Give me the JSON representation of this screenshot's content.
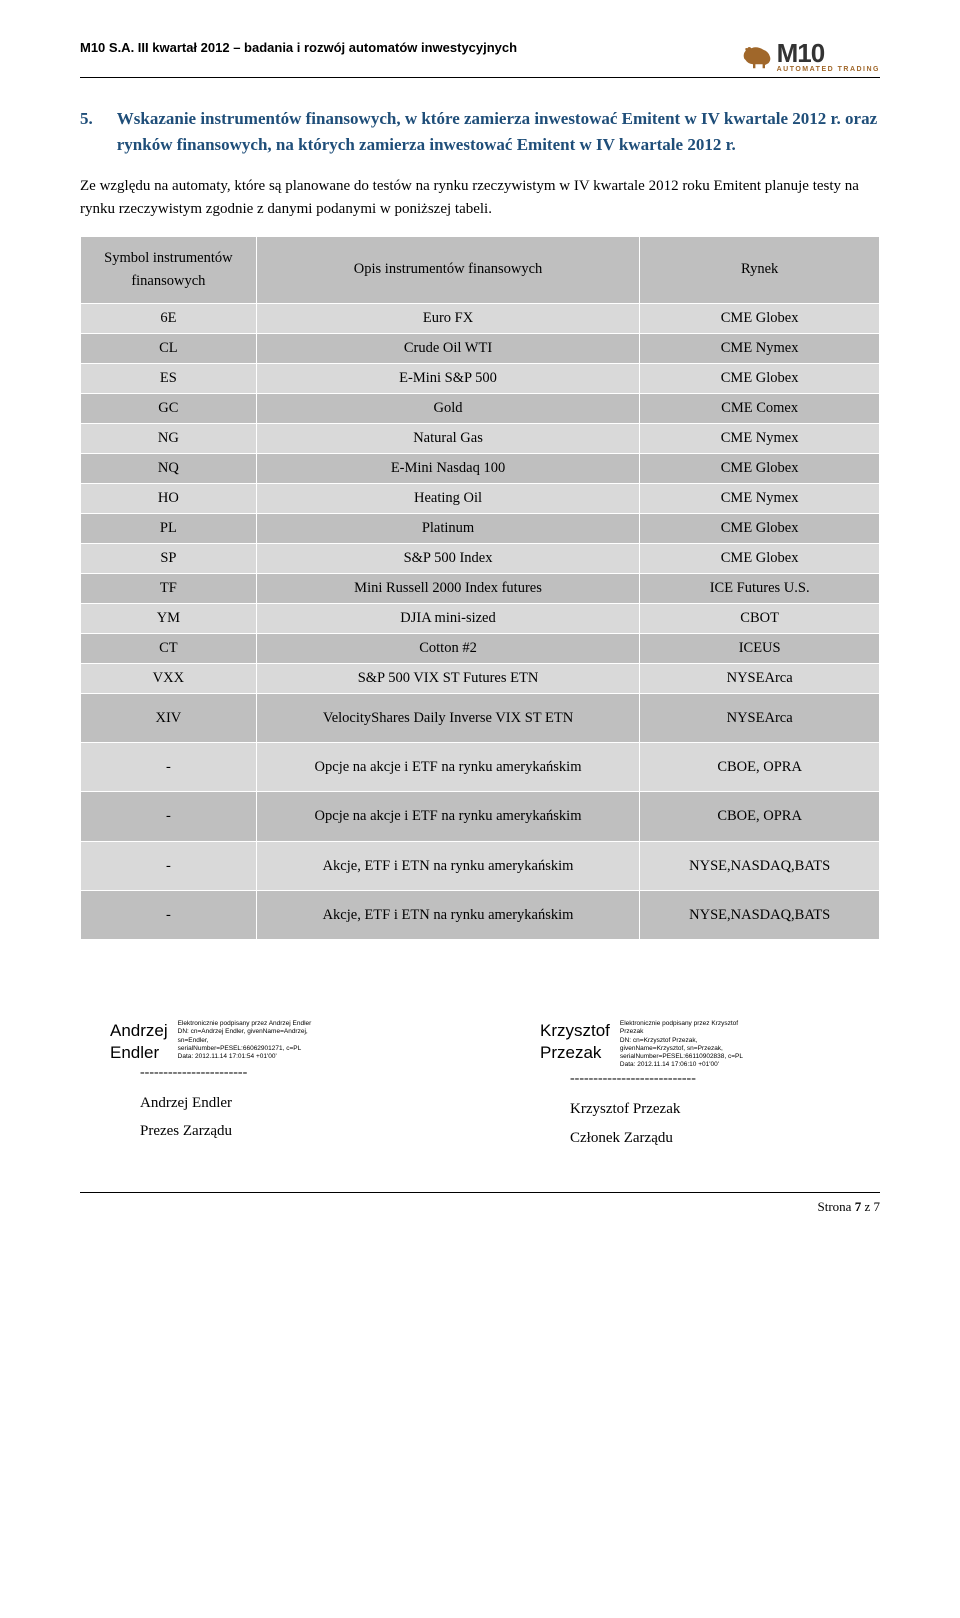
{
  "header": {
    "left": "M10 S.A.   III kwartał 2012 – badania i rozwój automatów inwestycyjnych",
    "logo_main": "M10",
    "logo_sub": "AUTOMATED TRADING"
  },
  "section": {
    "number": "5.",
    "title": "Wskazanie instrumentów finansowych, w które zamierza inwestować Emitent w IV kwartale 2012 r. oraz rynków finansowych, na których zamierza inwestować Emitent w IV kwartale 2012 r."
  },
  "body_para": "Ze względu na automaty, które są planowane do testów na rynku rzeczywistym  w IV kwartale 2012 roku Emitent planuje testy na rynku rzeczywistym zgodnie z danymi podanymi w poniższej tabeli.",
  "table": {
    "headers": {
      "c1": "Symbol instrumentów finansowych",
      "c2": "Opis instrumentów finansowych",
      "c3": "Rynek"
    },
    "rows": [
      {
        "sym": "6E",
        "desc": "Euro FX",
        "mkt": "CME Globex",
        "shade": "light"
      },
      {
        "sym": "CL",
        "desc": "Crude Oil WTI",
        "mkt": "CME Nymex",
        "shade": "dark"
      },
      {
        "sym": "ES",
        "desc": "E-Mini S&P 500",
        "mkt": "CME Globex",
        "shade": "light"
      },
      {
        "sym": "GC",
        "desc": "Gold",
        "mkt": "CME Comex",
        "shade": "dark"
      },
      {
        "sym": "NG",
        "desc": "Natural Gas",
        "mkt": "CME Nymex",
        "shade": "light"
      },
      {
        "sym": "NQ",
        "desc": "E-Mini Nasdaq 100",
        "mkt": "CME Globex",
        "shade": "dark"
      },
      {
        "sym": "HO",
        "desc": "Heating Oil",
        "mkt": "CME Nymex",
        "shade": "light"
      },
      {
        "sym": "PL",
        "desc": "Platinum",
        "mkt": "CME Globex",
        "shade": "dark"
      },
      {
        "sym": "SP",
        "desc": "S&P 500 Index",
        "mkt": "CME Globex",
        "shade": "light"
      },
      {
        "sym": "TF",
        "desc": "Mini Russell 2000 Index futures",
        "mkt": "ICE Futures U.S.",
        "shade": "dark"
      },
      {
        "sym": "YM",
        "desc": "DJIA mini-sized",
        "mkt": "CBOT",
        "shade": "light"
      },
      {
        "sym": "CT",
        "desc": "Cotton #2",
        "mkt": "ICEUS",
        "shade": "dark"
      },
      {
        "sym": "VXX",
        "desc": "S&P 500 VIX ST Futures ETN",
        "mkt": "NYSEArca",
        "shade": "light"
      },
      {
        "sym": "XIV",
        "desc": "VelocityShares Daily Inverse VIX ST ETN",
        "mkt": "NYSEArca",
        "shade": "dark",
        "tall": true
      },
      {
        "sym": "-",
        "desc": "Opcje na akcje i ETF na rynku amerykańskim",
        "mkt": "CBOE, OPRA",
        "shade": "light",
        "tall": true
      },
      {
        "sym": "-",
        "desc": "Opcje na akcje i ETF na rynku amerykańskim",
        "mkt": "CBOE, OPRA",
        "shade": "dark",
        "tall": true
      },
      {
        "sym": "-",
        "desc": "Akcje, ETF i ETN na rynku amerykańskim",
        "mkt": "NYSE,NASDAQ,BATS",
        "shade": "light",
        "tall": true
      },
      {
        "sym": "-",
        "desc": "Akcje, ETF i ETN na rynku amerykańskim",
        "mkt": "NYSE,NASDAQ,BATS",
        "shade": "dark",
        "tall": true
      }
    ]
  },
  "signatures": {
    "left": {
      "big_line1": "Andrzej",
      "big_line2": "Endler",
      "meta": "Elektronicznie podpisany przez Andrzej Endler\nDN: cn=Andrzej Endler, givenName=Andrzej,\nsn=Endler,\nserialNumber=PESEL:66062901271, c=PL\nData: 2012.11.14 17:01:54 +01'00'",
      "dashes": "-----------------------",
      "printed_name": "Andrzej Endler",
      "printed_role": "Prezes Zarządu"
    },
    "right": {
      "big_line1": "Krzysztof",
      "big_line2": "Przezak",
      "meta": "Elektronicznie podpisany przez Krzysztof\nPrzezak\nDN: cn=Krzysztof Przezak,\ngivenName=Krzysztof, sn=Przezak,\nserialNumber=PESEL:66110902838, c=PL\nData: 2012.11.14 17:06:10 +01'00'",
      "dashes": "---------------------------",
      "printed_name": "Krzysztof Przezak",
      "printed_role": "Członek Zarządu"
    }
  },
  "footer": {
    "page_label_prefix": "Strona ",
    "page_current": "7",
    "page_sep": " z ",
    "page_total": "7"
  },
  "colors": {
    "heading": "#1f4e79",
    "row_light": "#d9d9d9",
    "row_dark": "#bfbfbf",
    "logo_brown": "#a0672a"
  }
}
